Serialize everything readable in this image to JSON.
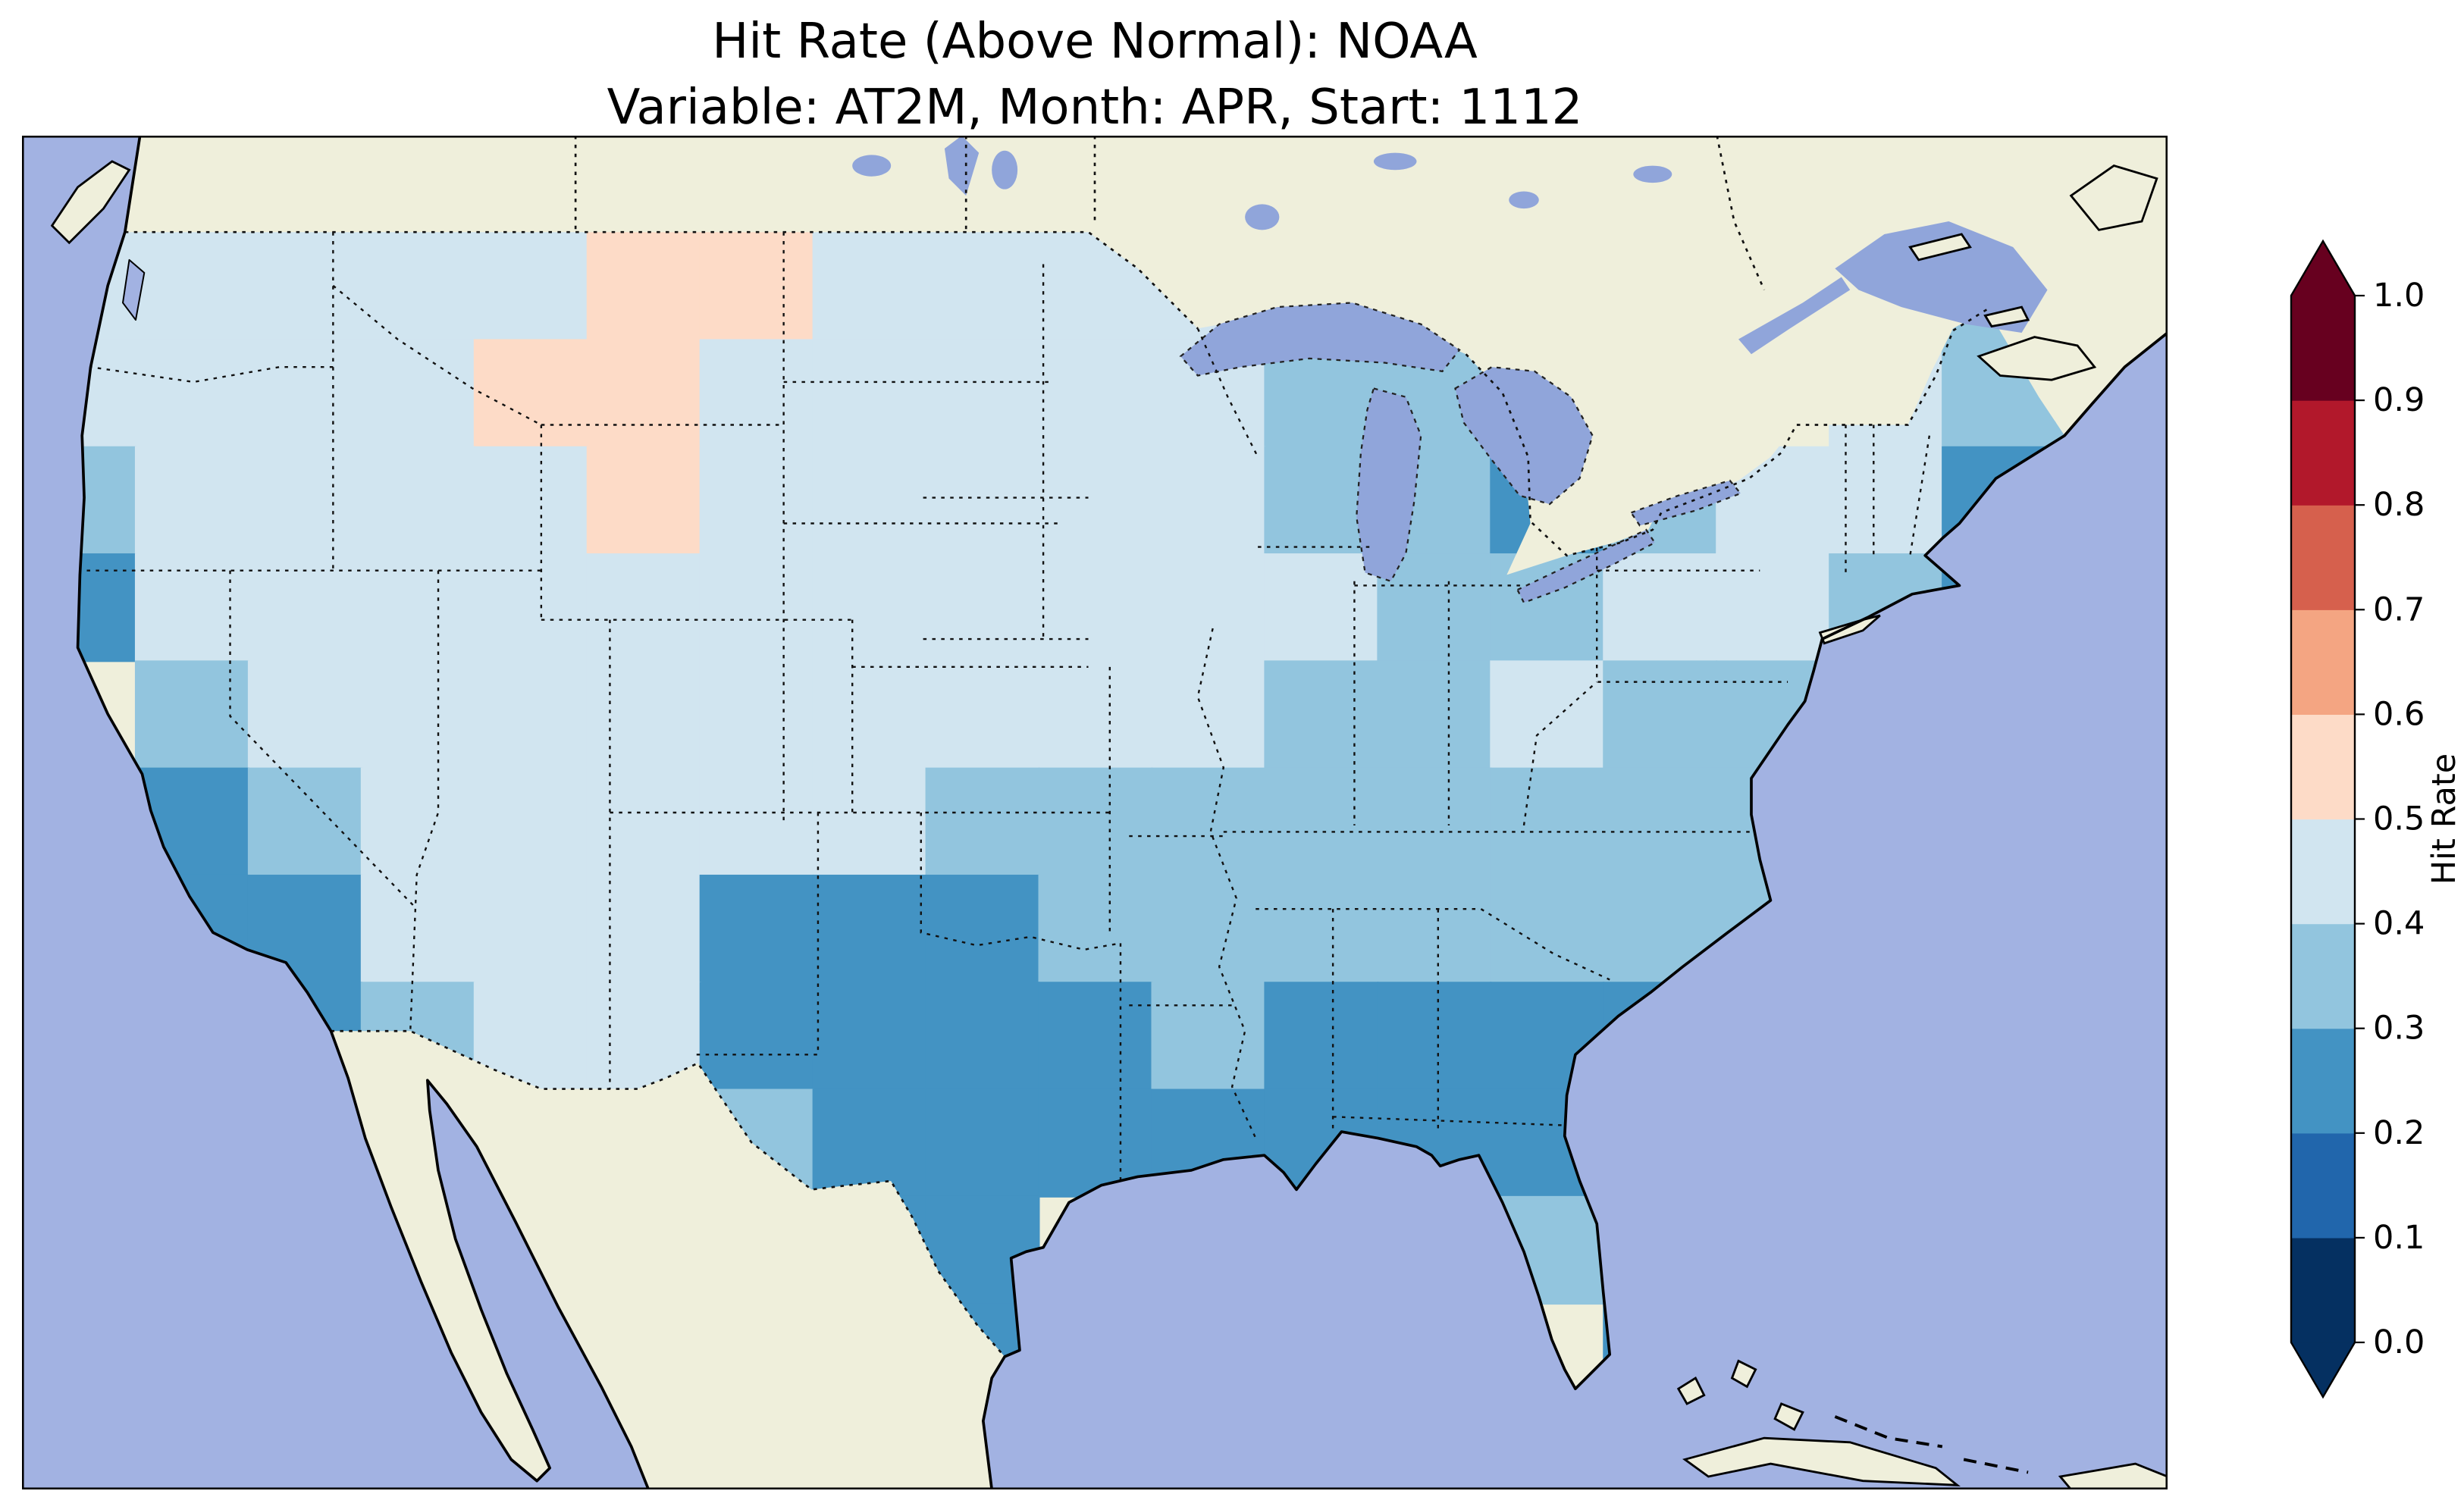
{
  "title": {
    "line1": "Hit Rate (Above Normal): NOAA",
    "line2": "Variable: AT2M, Month: APR, Start: 1112"
  },
  "colorbar": {
    "label": "Hit Rate",
    "ticks": [
      "1.0",
      "0.9",
      "0.8",
      "0.7",
      "0.6",
      "0.5",
      "0.4",
      "0.3",
      "0.2",
      "0.1",
      "0.0"
    ],
    "band_colors_bottom_to_top": [
      "#053061",
      "#2166ac",
      "#4393c3",
      "#92c5de",
      "#d1e5f0",
      "#fddbc7",
      "#f4a582",
      "#d6604d",
      "#b2182b",
      "#67001f"
    ],
    "under_color": "#053061",
    "over_color": "#67001f",
    "extend": "both",
    "orientation": "vertical",
    "position": "right"
  },
  "map_colors": {
    "ocean": "#a2b2e2",
    "land": "#efefdb",
    "lakes": "#90a5da",
    "coastline": "#000000",
    "borders": "#111111"
  },
  "chart_data": {
    "type": "heatmap",
    "title": "Hit Rate (Above Normal): NOAA",
    "subtitle": "Variable: AT2M, Month: APR, Start: 1112",
    "colorbar_label": "Hit Rate",
    "colorbar_ticks": [
      1.0,
      0.9,
      0.8,
      0.7,
      0.6,
      0.5,
      0.4,
      0.3,
      0.2,
      0.1,
      0.0
    ],
    "value_range_shown_on_map": [
      0.2,
      0.6
    ],
    "palette_bins": {
      "0.0-0.1": "#053061",
      "0.1-0.2": "#2166ac",
      "0.2-0.3": "#4393c3",
      "0.3-0.4": "#92c5de",
      "0.4-0.5": "#d1e5f0",
      "0.5-0.6": "#fddbc7",
      "0.6-0.7": "#f4a582",
      "0.7-0.8": "#d6604d",
      "0.8-0.9": "#b2182b",
      "0.9-1.0": "#67001f"
    },
    "region": "Contiguous United States (values masked to CONUS; Canada and Mexico unshaded)",
    "grid": {
      "rows": 11,
      "cols": 19,
      "code_to_value": {
        "2": "0.2-0.3",
        "3": "0.3-0.4",
        "4": "0.4-0.5",
        "5": "0.5-0.6",
        "0": "no data"
      },
      "cell_codes": [
        "4444455444433000033",
        "4444554444433300433",
        "3444454444433234423",
        "2444444444443344320",
        "0344444444433433300",
        "0234444433333333300",
        "0224442223333333000",
        "0023442222322223000",
        "0000043222222230000",
        "0000003220000320000",
        "0000000022000020000"
      ]
    },
    "code_to_color": {
      "2": "#4393c3",
      "3": "#92c5de",
      "4": "#d1e5f0",
      "5": "#fddbc7"
    },
    "pattern_summary": [
      "Most of the contiguous US shows hit rates between 0.2 and 0.5 (blue shades).",
      "Lowest values (0.2-0.3): southern/central Texas, Oklahoma, Gulf Coast, Deep South (MS/AL/GA/SC), Florida peninsula, coastal southern California, spots near Lake Michigan, NYC and coastal Maine.",
      "Moderate values (0.3-0.4): Southeast, mid-South, Ozarks, Ohio Valley fringe, upper Great Lakes, New England.",
      "Higher values (0.4-0.5): Pacific Northwest, northern Rockies, Great Basin, northern and central Plains, upper Midwest, interior Northeast.",
      "A few cells reach 0.5-0.6 (pale pink): western/central Montana and Idaho-Montana border area.",
      "No grid cells at or above 0.6 appear on the map."
    ],
    "layout": {
      "colorbar_position": "right",
      "grid_lines": false,
      "projection": "flat lon/lat view of North America centered on CONUS"
    }
  }
}
